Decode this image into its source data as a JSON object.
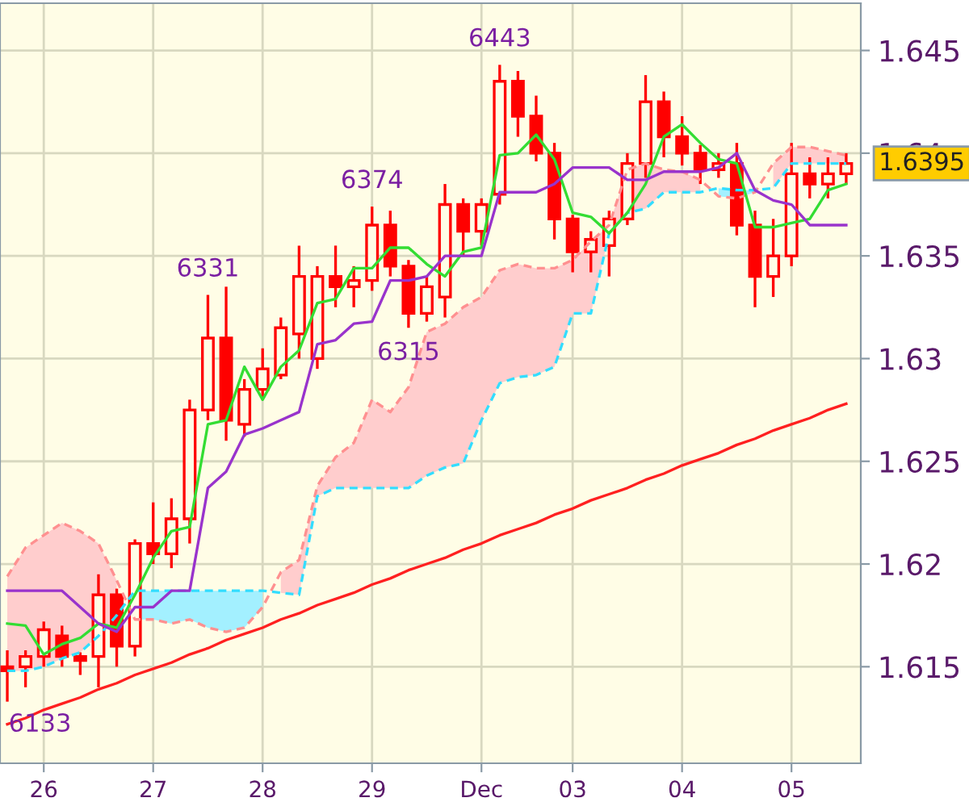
{
  "chart_data": {
    "type": "candlestick",
    "categories": [
      null,
      null,
      "26",
      null,
      null,
      null,
      null,
      null,
      "27",
      null,
      null,
      null,
      null,
      null,
      "28",
      null,
      null,
      null,
      null,
      null,
      "29",
      null,
      null,
      null,
      null,
      null,
      "Dec",
      null,
      null,
      null,
      null,
      "03",
      null,
      null,
      null,
      null,
      null,
      "04",
      null,
      null,
      null,
      null,
      null,
      "05",
      null,
      null,
      null
    ],
    "color": "#ff0000",
    "ohlc": [
      [
        1.615,
        1.6158,
        1.6133,
        1.6148
      ],
      [
        1.615,
        1.6158,
        1.614,
        1.6155
      ],
      [
        1.6155,
        1.6172,
        1.615,
        1.6168
      ],
      [
        1.6165,
        1.617,
        1.615,
        1.6155
      ],
      [
        1.6155,
        1.6157,
        1.6146,
        1.6153
      ],
      [
        1.6155,
        1.6195,
        1.614,
        1.6185
      ],
      [
        1.6185,
        1.6188,
        1.615,
        1.616
      ],
      [
        1.616,
        1.6212,
        1.6155,
        1.621
      ],
      [
        1.621,
        1.623,
        1.62,
        1.6205
      ],
      [
        1.6205,
        1.6232,
        1.6198,
        1.6222
      ],
      [
        1.6222,
        1.628,
        1.621,
        1.6275
      ],
      [
        1.6275,
        1.6331,
        1.627,
        1.631
      ],
      [
        1.631,
        1.6335,
        1.626,
        1.627
      ],
      [
        1.6268,
        1.629,
        1.6262,
        1.6285
      ],
      [
        1.6285,
        1.6305,
        1.628,
        1.6295
      ],
      [
        1.6292,
        1.632,
        1.629,
        1.6315
      ],
      [
        1.6312,
        1.6355,
        1.63,
        1.634
      ],
      [
        1.63,
        1.6345,
        1.6295,
        1.634
      ],
      [
        1.634,
        1.6355,
        1.6325,
        1.6335
      ],
      [
        1.6335,
        1.6345,
        1.6325,
        1.6338
      ],
      [
        1.6338,
        1.6374,
        1.6333,
        1.6365
      ],
      [
        1.6365,
        1.6372,
        1.634,
        1.6345
      ],
      [
        1.6345,
        1.6348,
        1.6315,
        1.6322
      ],
      [
        1.6322,
        1.634,
        1.6318,
        1.6335
      ],
      [
        1.633,
        1.6385,
        1.632,
        1.6375
      ],
      [
        1.6375,
        1.6378,
        1.635,
        1.6362
      ],
      [
        1.6362,
        1.6378,
        1.6355,
        1.6375
      ],
      [
        1.638,
        1.6443,
        1.6375,
        1.6435
      ],
      [
        1.6435,
        1.644,
        1.6408,
        1.6418
      ],
      [
        1.6418,
        1.6428,
        1.6396,
        1.64
      ],
      [
        1.64,
        1.6405,
        1.6358,
        1.6368
      ],
      [
        1.6368,
        1.637,
        1.6342,
        1.6352
      ],
      [
        1.6352,
        1.6362,
        1.6342,
        1.6358
      ],
      [
        1.6355,
        1.6372,
        1.634,
        1.6368
      ],
      [
        1.6368,
        1.64,
        1.6365,
        1.6395
      ],
      [
        1.6395,
        1.6438,
        1.6388,
        1.6425
      ],
      [
        1.6425,
        1.643,
        1.6398,
        1.6408
      ],
      [
        1.6408,
        1.6418,
        1.6394,
        1.64
      ],
      [
        1.64,
        1.6404,
        1.6385,
        1.6392
      ],
      [
        1.6392,
        1.64,
        1.6388,
        1.6395
      ],
      [
        1.6395,
        1.6405,
        1.636,
        1.6365
      ],
      [
        1.6365,
        1.6372,
        1.6325,
        1.634
      ],
      [
        1.634,
        1.6368,
        1.633,
        1.635
      ],
      [
        1.635,
        1.6405,
        1.6345,
        1.639
      ],
      [
        1.639,
        1.6398,
        1.6378,
        1.6385
      ],
      [
        1.6385,
        1.6398,
        1.6378,
        1.639
      ],
      [
        1.639,
        1.64,
        1.6385,
        1.6395
      ]
    ],
    "series": [
      {
        "type": "line",
        "color": "#ff9090",
        "line_style": "dashed",
        "values": [
          1.6194,
          1.6208,
          1.6214,
          1.622,
          1.6216,
          1.621,
          1.6192,
          1.6173,
          1.6173,
          1.6171,
          1.6173,
          1.6169,
          1.6167,
          1.6169,
          1.6179,
          1.6196,
          1.6202,
          1.6238,
          1.6252,
          1.6259,
          1.628,
          1.6274,
          1.6286,
          1.6313,
          1.6317,
          1.6325,
          1.633,
          1.6343,
          1.6346,
          1.6344,
          1.6344,
          1.6348,
          1.6357,
          1.6365,
          1.6392,
          1.6395,
          1.6392,
          1.6391,
          1.6387,
          1.6379,
          1.6378,
          1.6381,
          1.6395,
          1.6403,
          1.6403,
          1.6401,
          1.6399
        ],
        "upper": [
          1.6194,
          1.6208,
          1.6214,
          1.622,
          1.6216,
          1.621,
          1.6192,
          null,
          null,
          null,
          null,
          null,
          null,
          null,
          null,
          1.6196,
          1.6202,
          1.6238,
          1.6252,
          1.6259,
          1.628,
          1.6274,
          1.6286,
          1.6313,
          1.6317,
          1.6325,
          1.633,
          1.6343,
          1.6346,
          1.6344,
          1.6344,
          1.6348,
          1.6357,
          1.6365,
          1.6392,
          1.6395,
          1.6392,
          1.6391,
          1.6387,
          null,
          null,
          null,
          1.6395,
          1.6403,
          1.6403,
          1.6401,
          1.6399
        ],
        "lower": [
          1.6148,
          1.6148,
          1.615,
          1.6154,
          1.6157,
          1.6165,
          1.6175,
          null,
          null,
          null,
          null,
          null,
          null,
          null,
          null,
          1.6186,
          1.6185,
          1.6233,
          1.6237,
          1.6237,
          1.6237,
          1.6237,
          1.6237,
          1.6243,
          1.6247,
          1.6249,
          1.627,
          1.6288,
          1.6291,
          1.6292,
          1.6296,
          1.6322,
          1.6322,
          1.6361,
          1.6371,
          1.6373,
          1.6381,
          1.6381,
          1.6381,
          null,
          null,
          null,
          1.6383,
          1.6395,
          1.6395,
          1.6395,
          1.6395
        ]
      },
      {
        "type": "line",
        "color": "#33ddff",
        "line_style": "dashed",
        "values": [
          1.6148,
          1.6148,
          1.615,
          1.6154,
          1.6157,
          1.6165,
          1.6175,
          1.6187,
          1.6187,
          1.6187,
          1.6187,
          1.6187,
          1.6187,
          1.6187,
          1.6187,
          1.6186,
          1.6185,
          1.6233,
          1.6237,
          1.6237,
          1.6237,
          1.6237,
          1.6237,
          1.6243,
          1.6247,
          1.6249,
          1.627,
          1.6288,
          1.6291,
          1.6292,
          1.6296,
          1.6322,
          1.6322,
          1.6361,
          1.6371,
          1.6373,
          1.6381,
          1.6381,
          1.6381,
          1.6383,
          1.6382,
          1.6382,
          1.6383,
          1.6395,
          1.6395,
          1.6395,
          1.6395
        ],
        "upper": [
          null,
          null,
          null,
          null,
          null,
          null,
          null,
          1.6187,
          1.6187,
          1.6187,
          1.6187,
          1.6187,
          1.6187,
          1.6187,
          1.6187,
          null,
          null,
          null,
          null,
          null,
          null,
          null,
          null,
          null,
          null,
          null,
          null,
          null,
          null,
          null,
          null,
          null,
          null,
          null,
          null,
          null,
          null,
          null,
          null,
          1.6383,
          1.6382,
          1.6382,
          null,
          null,
          null,
          null,
          null
        ],
        "lower": [
          null,
          null,
          null,
          null,
          null,
          null,
          null,
          1.6173,
          1.6173,
          1.6171,
          1.6173,
          1.6169,
          1.6167,
          1.6169,
          1.6179,
          null,
          null,
          null,
          null,
          null,
          null,
          null,
          null,
          null,
          null,
          null,
          null,
          null,
          null,
          null,
          null,
          null,
          null,
          null,
          null,
          null,
          null,
          null,
          null,
          1.6379,
          1.6378,
          1.6381,
          null,
          null,
          null,
          null,
          null
        ]
      },
      {
        "type": "line",
        "color": "#33dd33",
        "values": [
          1.6171,
          1.617,
          1.6156,
          1.6161,
          1.6164,
          1.6171,
          1.6169,
          1.6185,
          1.6203,
          1.6216,
          1.6218,
          1.6268,
          1.627,
          1.6296,
          1.628,
          1.6296,
          1.6304,
          1.6327,
          1.6329,
          1.6344,
          1.6344,
          1.6354,
          1.6354,
          1.6346,
          1.634,
          1.6352,
          1.6354,
          1.6399,
          1.64,
          1.6409,
          1.6397,
          1.6371,
          1.6369,
          1.6361,
          1.6371,
          1.6385,
          1.6408,
          1.6414,
          1.6405,
          1.6397,
          1.6395,
          1.6364,
          1.6364,
          1.6366,
          1.6368,
          1.6382,
          1.6385
        ]
      },
      {
        "type": "line",
        "color": "#9933cc",
        "values": [
          1.6187,
          1.6187,
          1.6187,
          1.6187,
          1.6179,
          1.6171,
          1.6167,
          1.6179,
          1.6179,
          1.6187,
          1.6187,
          1.6237,
          1.6245,
          1.6263,
          1.6266,
          1.627,
          1.6274,
          1.6307,
          1.6309,
          1.6317,
          1.6318,
          1.6338,
          1.6338,
          1.634,
          1.635,
          1.635,
          1.635,
          1.6381,
          1.6381,
          1.6381,
          1.6385,
          1.6393,
          1.6393,
          1.6393,
          1.6387,
          1.6387,
          1.6391,
          1.6391,
          1.6391,
          1.6393,
          1.64,
          1.6382,
          1.6377,
          1.6375,
          1.6365,
          1.6365,
          1.6365
        ]
      },
      {
        "type": "line",
        "color": "#ff2020",
        "values": [
          1.6122,
          1.6125,
          1.6129,
          1.6132,
          1.6135,
          1.6139,
          1.6142,
          1.6146,
          1.6149,
          1.6152,
          1.6156,
          1.6159,
          1.6163,
          1.6166,
          1.6169,
          1.6173,
          1.6176,
          1.618,
          1.6183,
          1.6186,
          1.619,
          1.6193,
          1.6197,
          1.62,
          1.6203,
          1.6207,
          1.621,
          1.6214,
          1.6217,
          1.622,
          1.6224,
          1.6227,
          1.6231,
          1.6234,
          1.6237,
          1.6241,
          1.6244,
          1.6248,
          1.6251,
          1.6254,
          1.6258,
          1.6261,
          1.6265,
          1.6268,
          1.6271,
          1.6275,
          1.6278
        ]
      }
    ],
    "ylim": [
      1.6103,
      1.6473
    ],
    "yticks": [
      1.615,
      1.62,
      1.625,
      1.63,
      1.635,
      1.64,
      1.645
    ],
    "grid": true,
    "annotations": [
      "6133",
      {
        "text": "6331",
        "y": 1.6331
      },
      {
        "text": "6374",
        "y": 1.6374
      },
      {
        "text": "6315",
        "y": 1.6315
      },
      {
        "text": "6443",
        "y": 1.6443
      },
      "1.6395"
    ]
  }
}
